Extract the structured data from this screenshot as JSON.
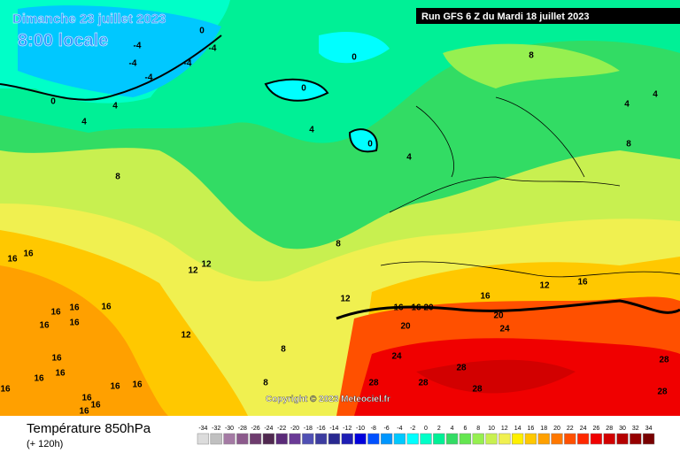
{
  "header": {
    "date": "Dimanche 23 juillet 2023",
    "time": "8:00 locale",
    "run": "Run GFS 6 Z du Mardi 18 juillet 2023"
  },
  "copyright": "Copyright © 2023 Meteociel.fr",
  "footer": {
    "title": "Température 850hPa",
    "lead": "(+ 120h)"
  },
  "contour_labels": [
    -4,
    -4,
    -4,
    -4,
    -4,
    0,
    0,
    0,
    0,
    0,
    4,
    4,
    4,
    4,
    4,
    4,
    8,
    8,
    8,
    8,
    8,
    8,
    12,
    12,
    12,
    12,
    12,
    16,
    16,
    16,
    16,
    16,
    16,
    16,
    16,
    16,
    16,
    16,
    16,
    16,
    16,
    16,
    16,
    16,
    16,
    16,
    16,
    20,
    20,
    20,
    24,
    24,
    28,
    28,
    28,
    28,
    28,
    28
  ],
  "scale": {
    "values": [
      -34,
      -32,
      -30,
      -28,
      -26,
      -24,
      -22,
      -20,
      -18,
      -16,
      -14,
      -12,
      -10,
      -8,
      -6,
      -4,
      -2,
      0,
      2,
      4,
      6,
      8,
      10,
      12,
      14,
      16,
      18,
      20,
      22,
      24,
      26,
      28,
      30,
      32,
      34
    ],
    "colors": [
      "#dcdcdc",
      "#c0c0c0",
      "#a47aa4",
      "#8c5a8c",
      "#6e3c6e",
      "#502850",
      "#5a2a78",
      "#6a3a96",
      "#5050b4",
      "#3c3ca0",
      "#282890",
      "#1e1eb4",
      "#0000dc",
      "#0050ff",
      "#0096ff",
      "#00c8ff",
      "#00ffff",
      "#00ffc8",
      "#00f096",
      "#32dc64",
      "#64e650",
      "#96f050",
      "#c8f050",
      "#f0f050",
      "#fff000",
      "#ffc800",
      "#ffa000",
      "#ff7800",
      "#ff5000",
      "#ff2800",
      "#f00000",
      "#d20000",
      "#b40000",
      "#960000",
      "#780000"
    ]
  }
}
